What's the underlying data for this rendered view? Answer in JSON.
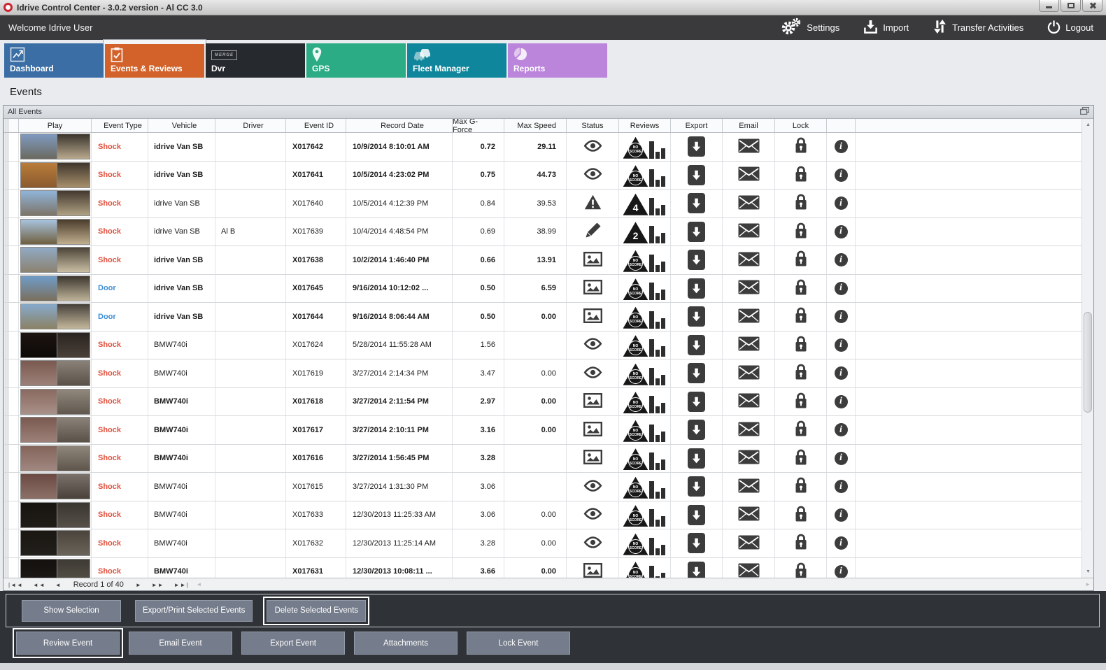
{
  "window": {
    "title": "Idrive Control Center - 3.0.2 version - Al CC 3.0",
    "controls": [
      "minimize",
      "maximize",
      "close"
    ]
  },
  "topbar": {
    "welcome": "Welcome Idrive User",
    "actions": [
      {
        "label": "Settings",
        "icon": "gears-icon"
      },
      {
        "label": "Import",
        "icon": "import-icon"
      },
      {
        "label": "Transfer Activities",
        "icon": "transfer-icon"
      },
      {
        "label": "Logout",
        "icon": "power-icon"
      }
    ]
  },
  "nav_tabs": [
    {
      "label": "Dashboard",
      "color": "#3a6ea5",
      "icon": "line-chart-icon",
      "active": false
    },
    {
      "label": "Events & Reviews",
      "color": "#d2622a",
      "icon": "clipboard-check-icon",
      "active": true
    },
    {
      "label": "Dvr",
      "color": "#26292e",
      "icon": "merge-logo-icon",
      "active": false
    },
    {
      "label": "GPS",
      "color": "#2bac84",
      "icon": "map-pin-icon",
      "active": false
    },
    {
      "label": "Fleet Manager",
      "color": "#0f869b",
      "icon": "vehicles-icon",
      "active": false
    },
    {
      "label": "Reports",
      "color": "#bb85dc",
      "icon": "pie-chart-icon",
      "active": false
    }
  ],
  "page": {
    "heading": "Events",
    "panel_tab": "All Events"
  },
  "table": {
    "headers": [
      "Play",
      "Event Type",
      "Vehicle",
      "Driver",
      "Event ID",
      "Record Date",
      "Max G-Force",
      "Max Speed",
      "Status",
      "Reviews",
      "Export",
      "Email",
      "Lock",
      ""
    ],
    "type_colors": {
      "Shock": "#e0513e",
      "Door": "#3f8fd6"
    },
    "rows": [
      {
        "event_type": "Shock",
        "vehicle": "idrive Van SB",
        "driver": "",
        "event_id": "X017642",
        "record_date": "10/9/2014 8:10:01 AM",
        "max_g_force": "0.72",
        "max_speed": "29.11",
        "status_icon": "eye-icon",
        "review_score": "NO SCORE",
        "bold": true,
        "thumb": [
          "#7f9ac0",
          "#6b6a60",
          "#3a342c",
          "#b9a98e"
        ]
      },
      {
        "event_type": "Shock",
        "vehicle": "idrive Van SB",
        "driver": "",
        "event_id": "X017641",
        "record_date": "10/5/2014 4:23:02 PM",
        "max_g_force": "0.75",
        "max_speed": "44.73",
        "status_icon": "eye-icon",
        "review_score": "NO SCORE",
        "bold": true,
        "thumb": [
          "#b97c3a",
          "#8a5a2e",
          "#3f362c",
          "#a8906c"
        ]
      },
      {
        "event_type": "Shock",
        "vehicle": "idrive Van SB",
        "driver": "",
        "event_id": "X017640",
        "record_date": "10/5/2014 4:12:39 PM",
        "max_g_force": "0.84",
        "max_speed": "39.53",
        "status_icon": "warning-icon",
        "review_score": "4",
        "bold": false,
        "thumb": [
          "#8fb4d8",
          "#7d7468",
          "#43392e",
          "#b0a284"
        ]
      },
      {
        "event_type": "Shock",
        "vehicle": "idrive Van SB",
        "driver": "Al B",
        "event_id": "X017639",
        "record_date": "10/4/2014 4:48:54 PM",
        "max_g_force": "0.69",
        "max_speed": "38.99",
        "status_icon": "pencil-icon",
        "review_score": "2",
        "bold": false,
        "thumb": [
          "#a8c4e0",
          "#6f5f3e",
          "#4a3c2c",
          "#c0ae8e"
        ]
      },
      {
        "event_type": "Shock",
        "vehicle": "idrive Van SB",
        "driver": "",
        "event_id": "X017638",
        "record_date": "10/2/2014 1:46:40 PM",
        "max_g_force": "0.66",
        "max_speed": "13.91",
        "status_icon": "image-icon",
        "review_score": "NO SCORE",
        "bold": true,
        "thumb": [
          "#90aac4",
          "#8c8270",
          "#4c4438",
          "#cabfa4"
        ]
      },
      {
        "event_type": "Door",
        "vehicle": "idrive Van SB",
        "driver": "",
        "event_id": "X017645",
        "record_date": "9/16/2014 10:12:02 ...",
        "max_g_force": "0.50",
        "max_speed": "6.59",
        "status_icon": "image-icon",
        "review_score": "NO SCORE",
        "bold": true,
        "thumb": [
          "#6f9cc8",
          "#7a6f5c",
          "#3c362e",
          "#bfb49a"
        ]
      },
      {
        "event_type": "Door",
        "vehicle": "idrive Van SB",
        "driver": "",
        "event_id": "X017644",
        "record_date": "9/16/2014 8:06:44 AM",
        "max_g_force": "0.50",
        "max_speed": "0.00",
        "status_icon": "image-icon",
        "review_score": "NO SCORE",
        "bold": true,
        "thumb": [
          "#86aacc",
          "#8b8164",
          "#46403a",
          "#c4b89c"
        ]
      },
      {
        "event_type": "Shock",
        "vehicle": "BMW740i",
        "driver": "",
        "event_id": "X017624",
        "record_date": "5/28/2014 11:55:28 AM",
        "max_g_force": "1.56",
        "max_speed": "",
        "status_icon": "eye-icon",
        "review_score": "NO SCORE",
        "bold": false,
        "thumb": [
          "#1c1410",
          "#0e0a08",
          "#2a2420",
          "#4a4038"
        ]
      },
      {
        "event_type": "Shock",
        "vehicle": "BMW740i",
        "driver": "",
        "event_id": "X017619",
        "record_date": "3/27/2014 2:14:34 PM",
        "max_g_force": "3.47",
        "max_speed": "0.00",
        "status_icon": "eye-icon",
        "review_score": "NO SCORE",
        "bold": false,
        "thumb": [
          "#7a5a50",
          "#9c8078",
          "#8a8278",
          "#5a5248"
        ]
      },
      {
        "event_type": "Shock",
        "vehicle": "BMW740i",
        "driver": "",
        "event_id": "X017618",
        "record_date": "3/27/2014 2:11:54 PM",
        "max_g_force": "2.97",
        "max_speed": "0.00",
        "status_icon": "image-icon",
        "review_score": "NO SCORE",
        "bold": true,
        "thumb": [
          "#8a6a60",
          "#a89088",
          "#90887c",
          "#60584e"
        ]
      },
      {
        "event_type": "Shock",
        "vehicle": "BMW740i",
        "driver": "",
        "event_id": "X017617",
        "record_date": "3/27/2014 2:10:11 PM",
        "max_g_force": "3.16",
        "max_speed": "0.00",
        "status_icon": "image-icon",
        "review_score": "NO SCORE",
        "bold": true,
        "thumb": [
          "#7a5a50",
          "#9c8078",
          "#8a8278",
          "#5a5248"
        ]
      },
      {
        "event_type": "Shock",
        "vehicle": "BMW740i",
        "driver": "",
        "event_id": "X017616",
        "record_date": "3/27/2014 1:56:45 PM",
        "max_g_force": "3.28",
        "max_speed": "",
        "status_icon": "image-icon",
        "review_score": "NO SCORE",
        "bold": true,
        "thumb": [
          "#84645a",
          "#a08880",
          "#8e867a",
          "#5e564c"
        ]
      },
      {
        "event_type": "Shock",
        "vehicle": "BMW740i",
        "driver": "",
        "event_id": "X017615",
        "record_date": "3/27/2014 1:31:30 PM",
        "max_g_force": "3.06",
        "max_speed": "",
        "status_icon": "eye-icon",
        "review_score": "NO SCORE",
        "bold": false,
        "thumb": [
          "#6a4a42",
          "#8c7068",
          "#7a726a",
          "#4a423a"
        ]
      },
      {
        "event_type": "Shock",
        "vehicle": "BMW740i",
        "driver": "",
        "event_id": "X017633",
        "record_date": "12/30/2013 11:25:33 AM",
        "max_g_force": "3.06",
        "max_speed": "0.00",
        "status_icon": "eye-icon",
        "review_score": "NO SCORE",
        "bold": false,
        "thumb": [
          "#181410",
          "#201c18",
          "#3a3630",
          "#565048"
        ]
      },
      {
        "event_type": "Shock",
        "vehicle": "BMW740i",
        "driver": "",
        "event_id": "X017632",
        "record_date": "12/30/2013 11:25:14 AM",
        "max_g_force": "3.28",
        "max_speed": "0.00",
        "status_icon": "eye-icon",
        "review_score": "NO SCORE",
        "bold": false,
        "thumb": [
          "#1a1612",
          "#22201c",
          "#4a443c",
          "#6a645a"
        ]
      },
      {
        "event_type": "Shock",
        "vehicle": "BMW740i",
        "driver": "",
        "event_id": "X017631",
        "record_date": "12/30/2013 10:08:11 ...",
        "max_g_force": "3.66",
        "max_speed": "0.00",
        "status_icon": "image-icon",
        "review_score": "NO SCORE",
        "bold": true,
        "thumb": [
          "#14100e",
          "#1e1a16",
          "#3e3a34",
          "#585248"
        ]
      }
    ]
  },
  "navigator": {
    "label": "Record 1 of 40",
    "back_buttons": [
      "|◄◄",
      "◄◄",
      "◄"
    ],
    "fwd_buttons": [
      "►",
      "►►",
      "►►|"
    ]
  },
  "selection_buttons": [
    {
      "label": "Show Selection",
      "focused": false
    },
    {
      "label": "Export/Print Selected Events",
      "focused": false
    },
    {
      "label": "Delete Selected  Events",
      "focused": true
    }
  ],
  "event_buttons": [
    {
      "label": "Review Event",
      "focused": true
    },
    {
      "label": "Email Event",
      "focused": false
    },
    {
      "label": "Export Event",
      "focused": false
    },
    {
      "label": "Attachments",
      "focused": false
    },
    {
      "label": "Lock Event",
      "focused": false
    }
  ]
}
